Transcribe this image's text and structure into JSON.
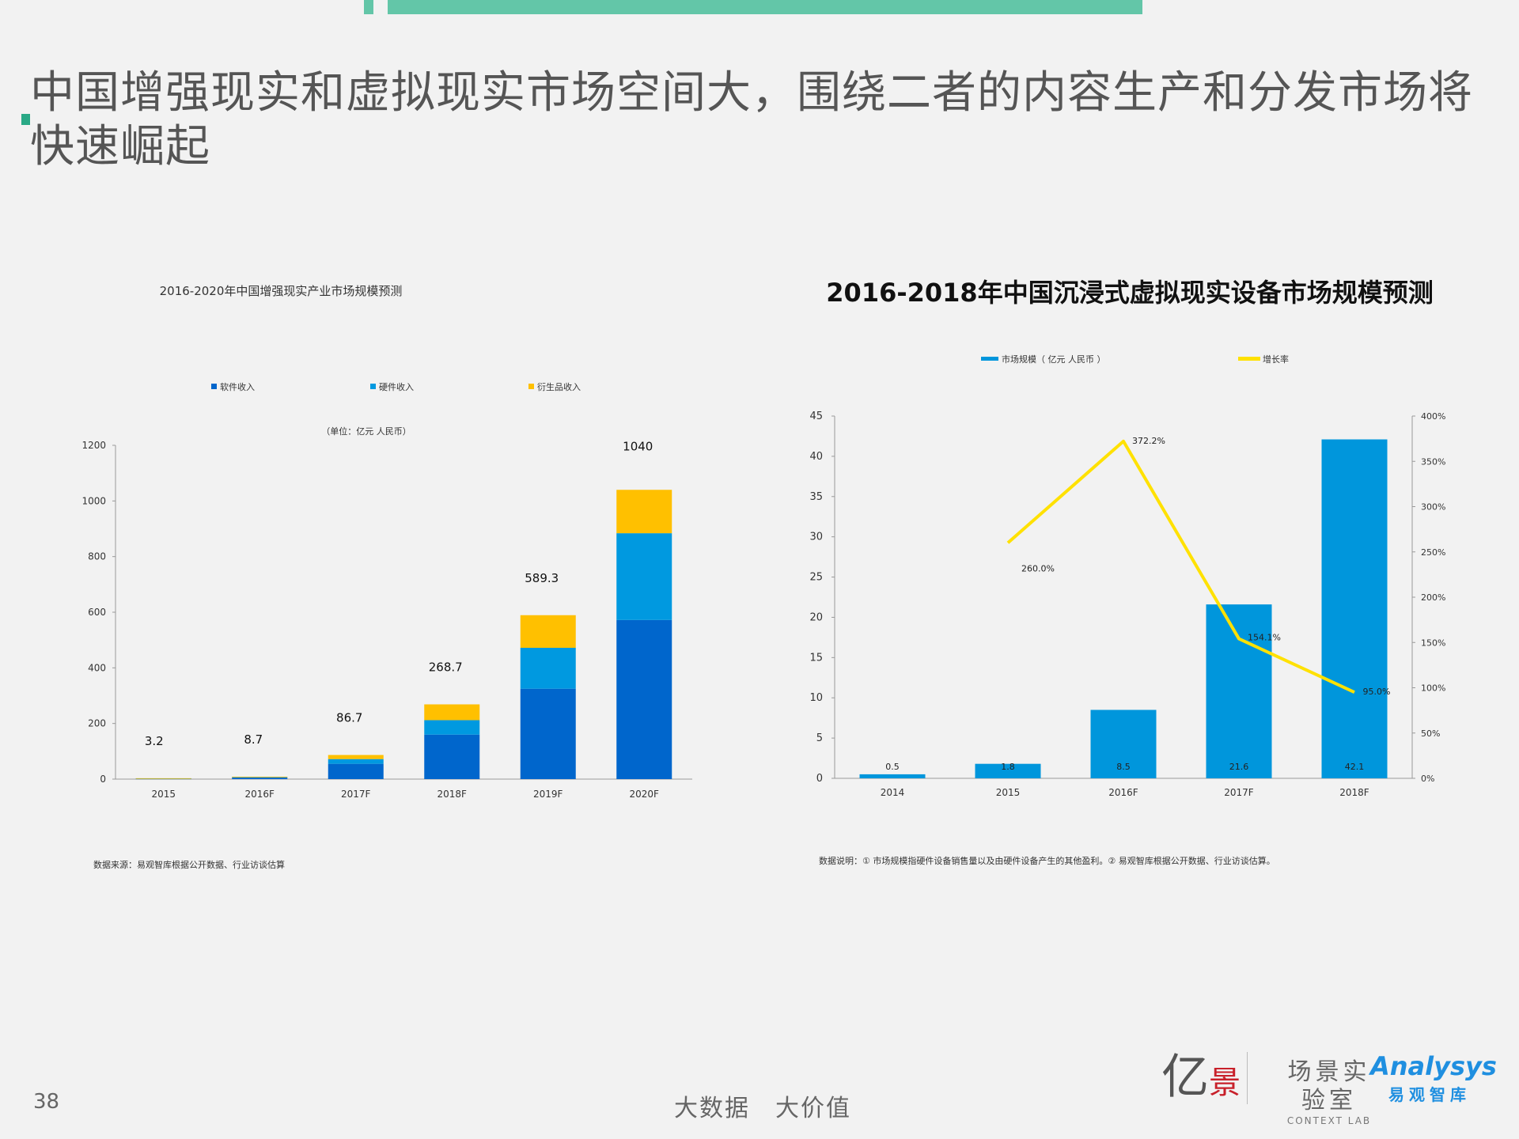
{
  "page": {
    "title": "中国增强现实和虚拟现实市场空间大，围绕二者的内容生产和分发市场将快速崛起",
    "page_number": "38",
    "slogan": "大数据　大价值",
    "logo": {
      "yi_char": "亿",
      "jing_char": "景",
      "context_cn": "场景实验室",
      "context_en": "CONTEXT LAB",
      "analysys_en": "Analysys",
      "analysys_cn": "易观智库"
    }
  },
  "chart_data": [
    {
      "type": "bar",
      "stacked": true,
      "title": "2016-2020年中国增强现实产业市场规模预测",
      "unit_note": "（单位：亿元 人民币）",
      "categories": [
        "2015",
        "2016F",
        "2017F",
        "2018F",
        "2019F",
        "2020F"
      ],
      "series": [
        {
          "name": "软件收入",
          "color": "#0066cc",
          "values": [
            2.0,
            5.5,
            55,
            160,
            325,
            572
          ]
        },
        {
          "name": "硬件收入",
          "color": "#0099e0",
          "values": [
            0.8,
            2.2,
            17,
            52,
            147,
            312
          ]
        },
        {
          "name": "衍生品收入",
          "color": "#ffc000",
          "values": [
            0.4,
            1.0,
            14.7,
            56.7,
            117.3,
            156
          ]
        }
      ],
      "totals": [
        3.2,
        8.7,
        86.7,
        268.7,
        589.3,
        1040
      ],
      "total_labels": [
        "3.2",
        "8.7",
        "86.7",
        "268.7",
        "589.3",
        "1040"
      ],
      "ylim": [
        0,
        1200
      ],
      "yticks": [
        0,
        200,
        400,
        600,
        800,
        1000,
        1200
      ],
      "ytick_labels": [
        "0",
        "200",
        "400",
        "600",
        "800",
        "1000",
        "1200"
      ],
      "legend_position": "top",
      "grid": false,
      "source": "数据来源：易观智库根据公开数据、行业访谈估算"
    },
    {
      "type": "bar+line",
      "title": "2016-2018年中国沉浸式虚拟现实设备市场规模预测",
      "categories": [
        "2014",
        "2015",
        "2016F",
        "2017F",
        "2018F"
      ],
      "bar_series": {
        "name": "市场规模（ 亿元 人民币 ）",
        "color": "#0096dc",
        "values": [
          0.5,
          1.8,
          8.5,
          21.6,
          42.1
        ],
        "labels": [
          "0.5",
          "1.8",
          "8.5",
          "21.6",
          "42.1"
        ]
      },
      "line_series": {
        "name": "增长率",
        "color": "#ffe100",
        "values": [
          null,
          260.0,
          372.2,
          154.1,
          95.0
        ],
        "labels": [
          "",
          "260.0%",
          "372.2%",
          "154.1%",
          "95.0%"
        ]
      },
      "ylim": [
        0,
        45
      ],
      "yticks": [
        0,
        5,
        10,
        15,
        20,
        25,
        30,
        35,
        40,
        45
      ],
      "ytick_labels": [
        "0",
        "5",
        "10",
        "15",
        "20",
        "25",
        "30",
        "35",
        "40",
        "45"
      ],
      "y2lim": [
        0,
        400
      ],
      "y2ticks": [
        0,
        50,
        100,
        150,
        200,
        250,
        300,
        350,
        400
      ],
      "y2tick_labels": [
        "0%",
        "50%",
        "100%",
        "150%",
        "200%",
        "250%",
        "300%",
        "350%",
        "400%"
      ],
      "legend_position": "top",
      "grid": false,
      "note": "数据说明：① 市场规模指硬件设备销售量以及由硬件设备产生的其他盈利。② 易观智库根据公开数据、行业访谈估算。"
    }
  ]
}
